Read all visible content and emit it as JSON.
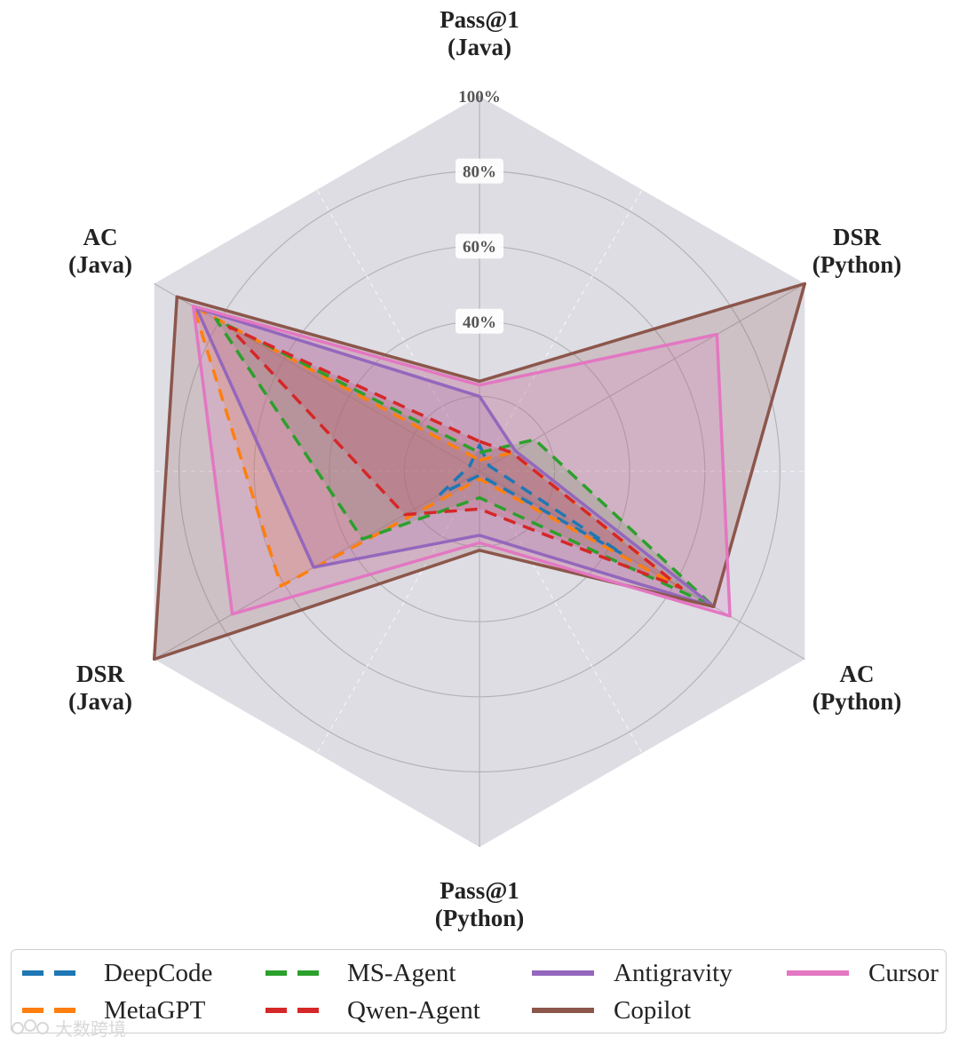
{
  "chart_data": {
    "type": "radar",
    "axes": [
      [
        "Pass@1",
        "(Java)"
      ],
      [
        "DSR",
        "(Python)"
      ],
      [
        "AC",
        "(Python)"
      ],
      [
        "Pass@1",
        "(Python)"
      ],
      [
        "DSR",
        "(Java)"
      ],
      [
        "AC",
        "(Java)"
      ]
    ],
    "rlim": [
      0,
      100
    ],
    "ticks": [
      "40%",
      "60%",
      "80%",
      "100%"
    ],
    "tick_values": [
      40,
      60,
      80,
      100
    ],
    "grid_circles": [
      20,
      40,
      60,
      80
    ],
    "grid": true,
    "legend": {
      "placement": "bottom",
      "columns": 4
    },
    "series": [
      {
        "name": "DeepCode",
        "color": "#1f77b4",
        "dash": true,
        "values": [
          7,
          3,
          44,
          1,
          12,
          3
        ]
      },
      {
        "name": "MetaGPT",
        "color": "#ff7f0e",
        "dash": true,
        "values": [
          3,
          10,
          62,
          2,
          61,
          88
        ]
      },
      {
        "name": "MS-Agent",
        "color": "#2ca02c",
        "dash": true,
        "values": [
          5,
          17,
          72,
          7,
          36,
          81
        ]
      },
      {
        "name": "Qwen-Agent",
        "color": "#d62728",
        "dash": true,
        "values": [
          8,
          10,
          62,
          10,
          23,
          77
        ]
      },
      {
        "name": "Antigravity",
        "color": "#9467bd",
        "dash": false,
        "values": [
          20,
          11,
          72,
          17,
          51,
          87
        ]
      },
      {
        "name": "Copilot",
        "color": "#8c564b",
        "dash": false,
        "values": [
          24,
          100,
          72,
          21,
          100,
          93
        ]
      },
      {
        "name": "Cursor",
        "color": "#e377c2",
        "dash": false,
        "values": [
          23,
          73,
          77,
          19,
          76,
          88
        ]
      }
    ],
    "legend_layout": [
      [
        "DeepCode",
        "MetaGPT"
      ],
      [
        "MS-Agent",
        "Qwen-Agent"
      ],
      [
        "Antigravity",
        "Copilot"
      ],
      [
        "Cursor"
      ]
    ]
  },
  "watermark": {
    "text": "大数跨境"
  }
}
